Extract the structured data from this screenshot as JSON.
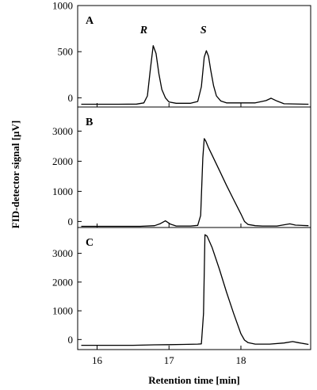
{
  "chart_data": {
    "type": "line",
    "ylabel": "FID-detector signal [µV]",
    "xlabel": "Retention time [min]",
    "xlim": [
      15.73,
      18.97
    ],
    "xticks": [
      16,
      17,
      18
    ],
    "grid": false,
    "panels": [
      {
        "label": "A",
        "ylim": [
          -100,
          1000
        ],
        "yticks": [
          0,
          500,
          1000
        ],
        "peak_labels": [
          {
            "text": "R",
            "x": 16.65,
            "y": 700
          },
          {
            "text": "S",
            "x": 17.48,
            "y": 700
          }
        ],
        "series": [
          {
            "x": [
              15.78,
              16.3,
              16.55,
              16.65,
              16.7,
              16.74,
              16.78,
              16.82,
              16.86,
              16.9,
              16.95,
              17.0,
              17.1,
              17.3,
              17.4,
              17.45,
              17.49,
              17.52,
              17.55,
              17.58,
              17.62,
              17.66,
              17.72,
              17.8,
              18.2,
              18.35,
              18.42,
              18.5,
              18.6,
              18.94
            ],
            "y": [
              -70,
              -70,
              -68,
              -55,
              20,
              300,
              565,
              480,
              260,
              90,
              0,
              -45,
              -60,
              -60,
              -40,
              120,
              440,
              510,
              450,
              300,
              130,
              20,
              -35,
              -55,
              -55,
              -30,
              -5,
              -35,
              -65,
              -70
            ]
          }
        ]
      },
      {
        "label": "B",
        "ylim": [
          -200,
          3800
        ],
        "yticks": [
          0,
          1000,
          2000,
          3000
        ],
        "series": [
          {
            "x": [
              15.78,
              16.6,
              16.8,
              16.88,
              16.95,
              17.02,
              17.1,
              17.3,
              17.4,
              17.44,
              17.47,
              17.49,
              17.51,
              17.55,
              17.6,
              17.7,
              17.8,
              17.9,
              18.0,
              18.05,
              18.1,
              18.2,
              18.3,
              18.5,
              18.6,
              18.68,
              18.76,
              18.94
            ],
            "y": [
              -160,
              -160,
              -140,
              -70,
              20,
              -90,
              -150,
              -150,
              -130,
              200,
              2100,
              2750,
              2680,
              2450,
              2200,
              1700,
              1200,
              720,
              250,
              0,
              -100,
              -140,
              -150,
              -150,
              -110,
              -80,
              -120,
              -140
            ]
          }
        ]
      },
      {
        "label": "C",
        "ylim": [
          -350,
          3900
        ],
        "yticks": [
          0,
          1000,
          2000,
          3000
        ],
        "series": [
          {
            "x": [
              15.78,
              16.5,
              16.8,
              17.0,
              17.2,
              17.4,
              17.45,
              17.48,
              17.5,
              17.53,
              17.6,
              17.7,
              17.8,
              17.9,
              18.0,
              18.05,
              18.1,
              18.2,
              18.4,
              18.6,
              18.72,
              18.8,
              18.94
            ],
            "y": [
              -200,
              -200,
              -185,
              -180,
              -170,
              -160,
              -150,
              900,
              3650,
              3600,
              3200,
              2450,
              1650,
              900,
              200,
              -20,
              -110,
              -160,
              -160,
              -120,
              -70,
              -110,
              -170
            ]
          }
        ]
      }
    ]
  }
}
